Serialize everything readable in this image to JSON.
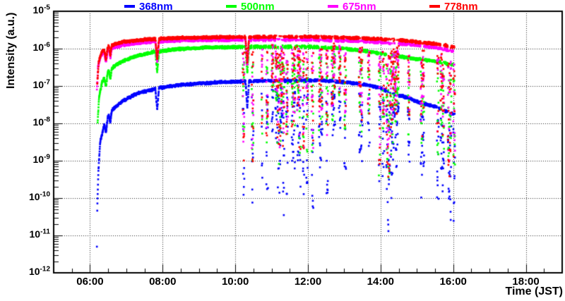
{
  "chart_data": {
    "type": "scatter",
    "title": "",
    "xlabel": "Time (JST)",
    "ylabel": "Intensity (a.u.)",
    "x_axis": {
      "unit": "hours JST",
      "min_hours": 5,
      "max_hours": 19,
      "major_tick_hours": [
        6,
        8,
        10,
        12,
        14,
        16,
        18
      ],
      "tick_labels": [
        "06:00",
        "08:00",
        "10:00",
        "12:00",
        "14:00",
        "16:00",
        "18:00"
      ],
      "minor_tick_step_hours": 0.5
    },
    "y_axis": {
      "scale": "log",
      "base_text": "10",
      "max_exp": -5,
      "min_exp": -12,
      "tick_exponents": [
        -5,
        -6,
        -7,
        -8,
        -9,
        -10,
        -11,
        -12
      ]
    },
    "grid": {
      "on": true,
      "style": "dotted",
      "color": "#000000"
    },
    "legend": {
      "position": "top-outside"
    },
    "frame_color": "#000000",
    "series": [
      {
        "name": "368nm",
        "color": "#0000ff",
        "marker": "square",
        "start_hour": 6.2,
        "end_hour": 16.05,
        "max_drop_decades": 3.8,
        "envelope_log10": [
          [
            6.2,
            -10.3
          ],
          [
            6.23,
            -9.3
          ],
          [
            6.28,
            -8.5
          ],
          [
            6.4,
            -8.0
          ],
          [
            6.6,
            -7.65
          ],
          [
            6.9,
            -7.4
          ],
          [
            7.3,
            -7.2
          ],
          [
            7.9,
            -7.05
          ],
          [
            8.5,
            -6.97
          ],
          [
            9.5,
            -6.9
          ],
          [
            10.5,
            -6.87
          ],
          [
            11.5,
            -6.86
          ],
          [
            12.4,
            -6.85
          ],
          [
            13.0,
            -6.9
          ],
          [
            13.6,
            -6.97
          ],
          [
            14.0,
            -7.05
          ],
          [
            14.3,
            -7.2
          ],
          [
            14.7,
            -7.3
          ],
          [
            15.1,
            -7.45
          ],
          [
            15.5,
            -7.55
          ],
          [
            16.05,
            -7.78
          ]
        ]
      },
      {
        "name": "500nm",
        "color": "#00ff00",
        "marker": "square",
        "start_hour": 6.21,
        "end_hour": 16.05,
        "max_drop_decades": 3.6,
        "envelope_log10": [
          [
            6.21,
            -7.95
          ],
          [
            6.25,
            -7.3
          ],
          [
            6.33,
            -6.9
          ],
          [
            6.5,
            -6.6
          ],
          [
            6.8,
            -6.38
          ],
          [
            7.2,
            -6.22
          ],
          [
            7.7,
            -6.1
          ],
          [
            8.3,
            -6.02
          ],
          [
            9.2,
            -5.97
          ],
          [
            10.5,
            -5.95
          ],
          [
            12.0,
            -5.95
          ],
          [
            13.0,
            -6.0
          ],
          [
            13.6,
            -6.07
          ],
          [
            14.3,
            -6.18
          ],
          [
            15.0,
            -6.28
          ],
          [
            15.5,
            -6.33
          ],
          [
            16.05,
            -6.45
          ]
        ]
      },
      {
        "name": "675nm",
        "color": "#ff00ff",
        "marker": "square",
        "start_hour": 6.19,
        "end_hour": 16.05,
        "max_drop_decades": 3.3,
        "envelope_log10": [
          [
            6.19,
            -7.1
          ],
          [
            6.22,
            -6.5
          ],
          [
            6.3,
            -6.18
          ],
          [
            6.5,
            -6.02
          ],
          [
            6.9,
            -5.9
          ],
          [
            7.6,
            -5.82
          ],
          [
            8.5,
            -5.78
          ],
          [
            10.0,
            -5.76
          ],
          [
            12.0,
            -5.76
          ],
          [
            13.5,
            -5.8
          ],
          [
            14.5,
            -5.86
          ],
          [
            15.1,
            -5.92
          ],
          [
            15.6,
            -5.98
          ],
          [
            16.05,
            -6.08
          ]
        ]
      },
      {
        "name": "778nm",
        "color": "#ff0000",
        "marker": "square",
        "start_hour": 6.2,
        "end_hour": 16.05,
        "max_drop_decades": 3.8,
        "envelope_log10": [
          [
            6.2,
            -6.95
          ],
          [
            6.24,
            -6.35
          ],
          [
            6.33,
            -6.08
          ],
          [
            6.5,
            -5.94
          ],
          [
            6.9,
            -5.82
          ],
          [
            7.6,
            -5.75
          ],
          [
            8.5,
            -5.71
          ],
          [
            10.0,
            -5.69
          ],
          [
            12.0,
            -5.68
          ],
          [
            13.5,
            -5.72
          ],
          [
            14.5,
            -5.77
          ],
          [
            15.1,
            -5.83
          ],
          [
            15.6,
            -5.88
          ],
          [
            16.05,
            -5.96
          ]
        ]
      }
    ],
    "dips": [
      [
        6.44,
        0.05,
        0.3
      ],
      [
        6.56,
        0.04,
        0.25
      ],
      [
        7.85,
        0.05,
        0.55
      ],
      [
        10.33,
        0.05,
        0.7
      ]
    ],
    "dropout_bursts": [
      [
        10.14,
        10.72,
        0.18
      ],
      [
        10.72,
        11.45,
        0.6
      ],
      [
        11.45,
        11.95,
        0.5
      ],
      [
        11.95,
        12.3,
        0.32
      ],
      [
        12.3,
        12.6,
        0.4
      ],
      [
        12.6,
        12.9,
        0.22
      ],
      [
        12.9,
        13.4,
        0.1
      ],
      [
        13.4,
        13.78,
        0.18
      ],
      [
        13.78,
        14.3,
        0.6
      ],
      [
        14.3,
        14.68,
        0.35
      ],
      [
        14.68,
        15.1,
        0.22
      ],
      [
        15.1,
        15.45,
        0.3
      ],
      [
        15.45,
        16.05,
        0.55
      ]
    ],
    "outliers": [
      {
        "series": "368nm",
        "hour": 6.19,
        "log10_value": -11.3
      }
    ],
    "sampling": {
      "dt_hours": 0.004,
      "seed": 20240616,
      "jitter_decades": 0.02
    }
  }
}
